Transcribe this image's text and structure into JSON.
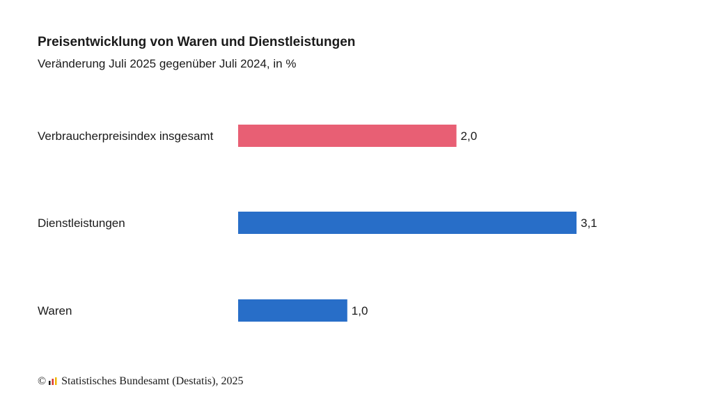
{
  "chart_data": {
    "type": "bar",
    "orientation": "horizontal",
    "title": "Preisentwicklung von Waren und Dienstleistungen",
    "subtitle": "Veränderung Juli 2025 gegenüber Juli 2024, in %",
    "categories": [
      "Verbraucherpreisindex insgesamt",
      "Dienstleistungen",
      "Waren"
    ],
    "values": [
      2.0,
      3.1,
      1.0
    ],
    "value_labels": [
      "2,0",
      "3,1",
      "1,0"
    ],
    "bar_colors": [
      "#e85f74",
      "#286ec8",
      "#286ec8"
    ],
    "xlim": [
      0,
      3.1
    ],
    "grid": false,
    "legend": "none"
  },
  "footer": {
    "copyright_symbol": "©",
    "logo_icon": "destatis-logo-icon",
    "source": "Statistisches Bundesamt (Destatis), 2025"
  },
  "colors": {
    "highlight": "#e85f74",
    "primary": "#286ec8",
    "text": "#1a1a1a"
  }
}
